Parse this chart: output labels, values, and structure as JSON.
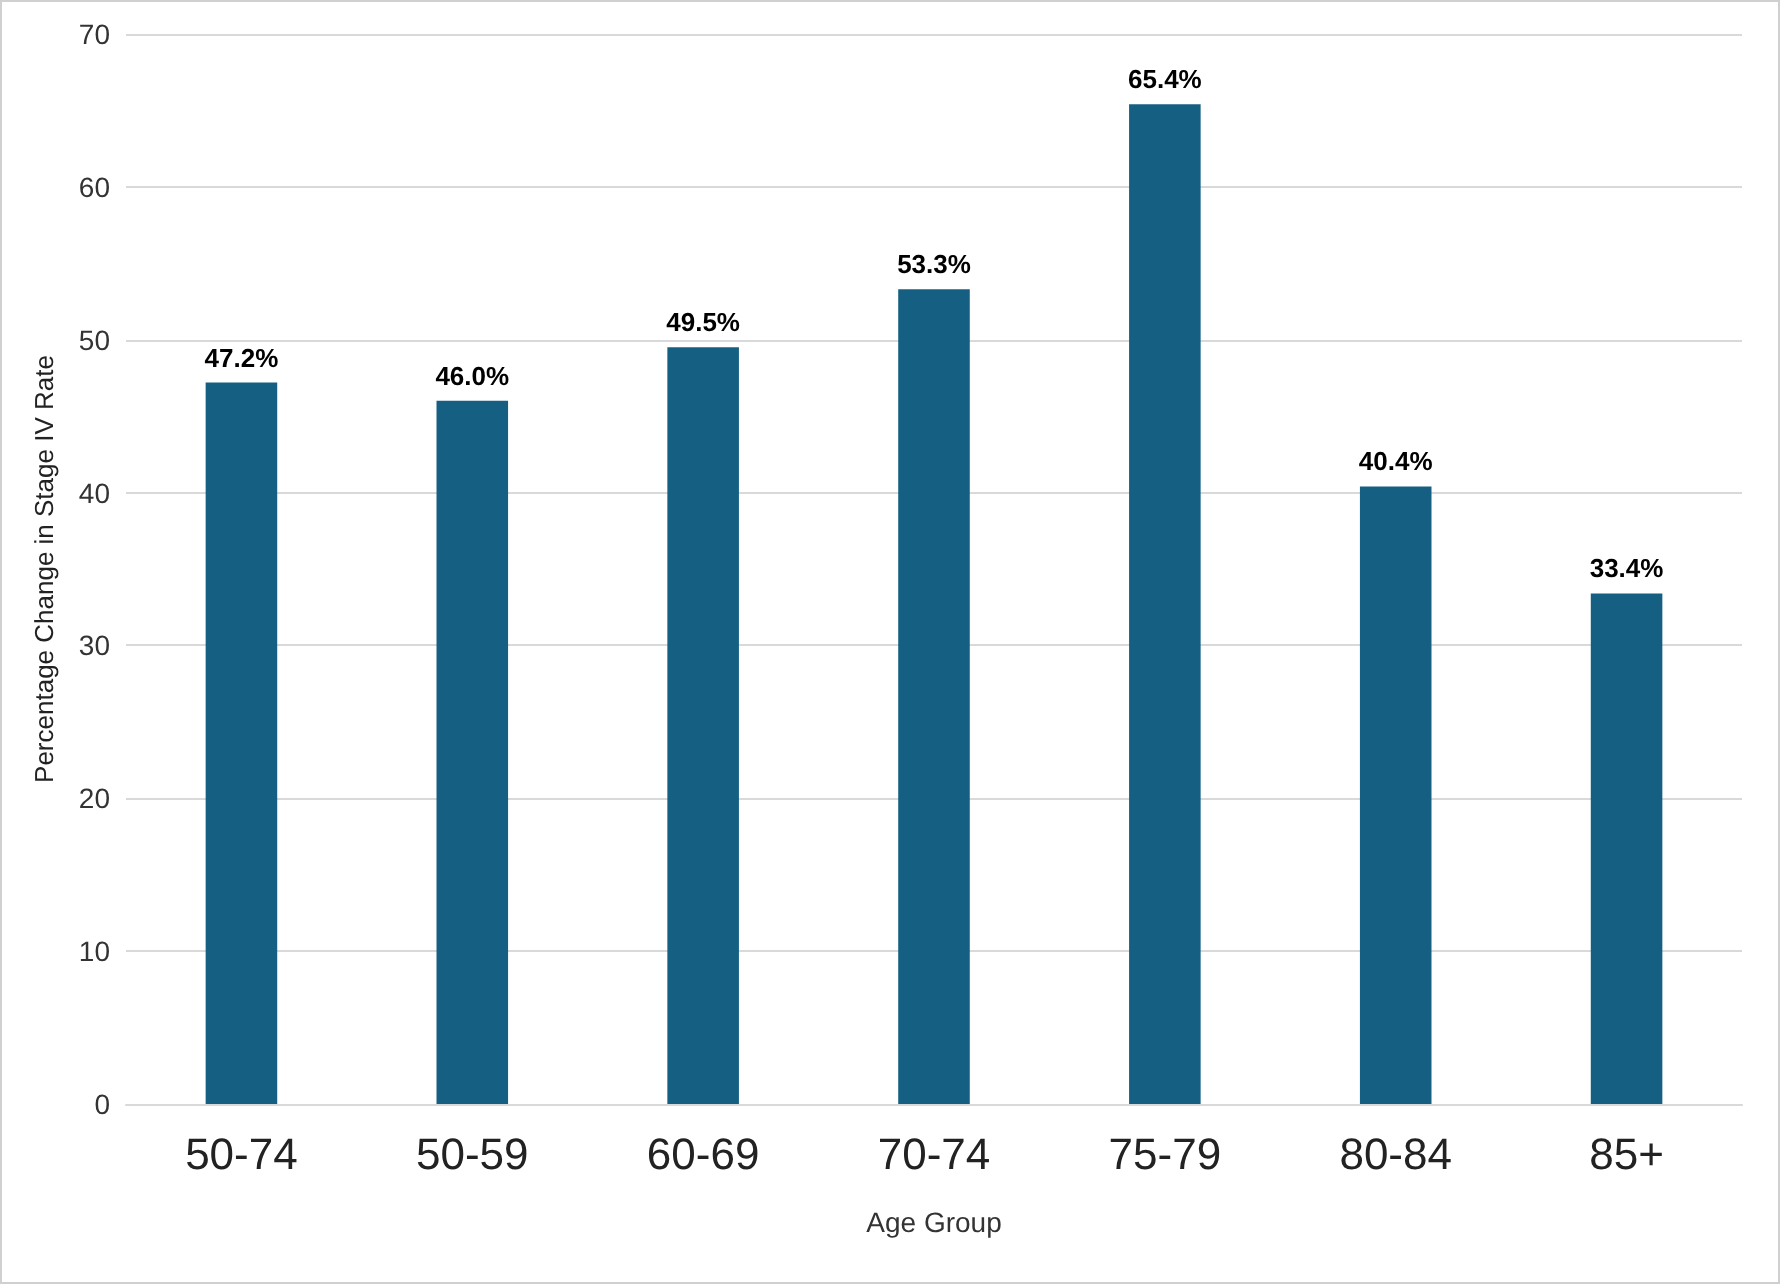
{
  "chart_data": {
    "type": "bar",
    "xlabel": "Age Group",
    "ylabel": "Percentage Change in Stage IV Rate",
    "categories": [
      "50-74",
      "50-59",
      "60-69",
      "70-74",
      "75-79",
      "80-84",
      "85+"
    ],
    "values": [
      47.2,
      46.0,
      49.5,
      53.3,
      65.4,
      40.4,
      33.4
    ],
    "value_labels": [
      "47.2%",
      "46.0%",
      "49.5%",
      "53.3%",
      "65.4%",
      "40.4%",
      "33.4%"
    ],
    "color": "#156082",
    "ylim": [
      0,
      70
    ],
    "yticks": [
      0,
      10,
      20,
      30,
      40,
      50,
      60,
      70
    ],
    "grid": "y"
  }
}
